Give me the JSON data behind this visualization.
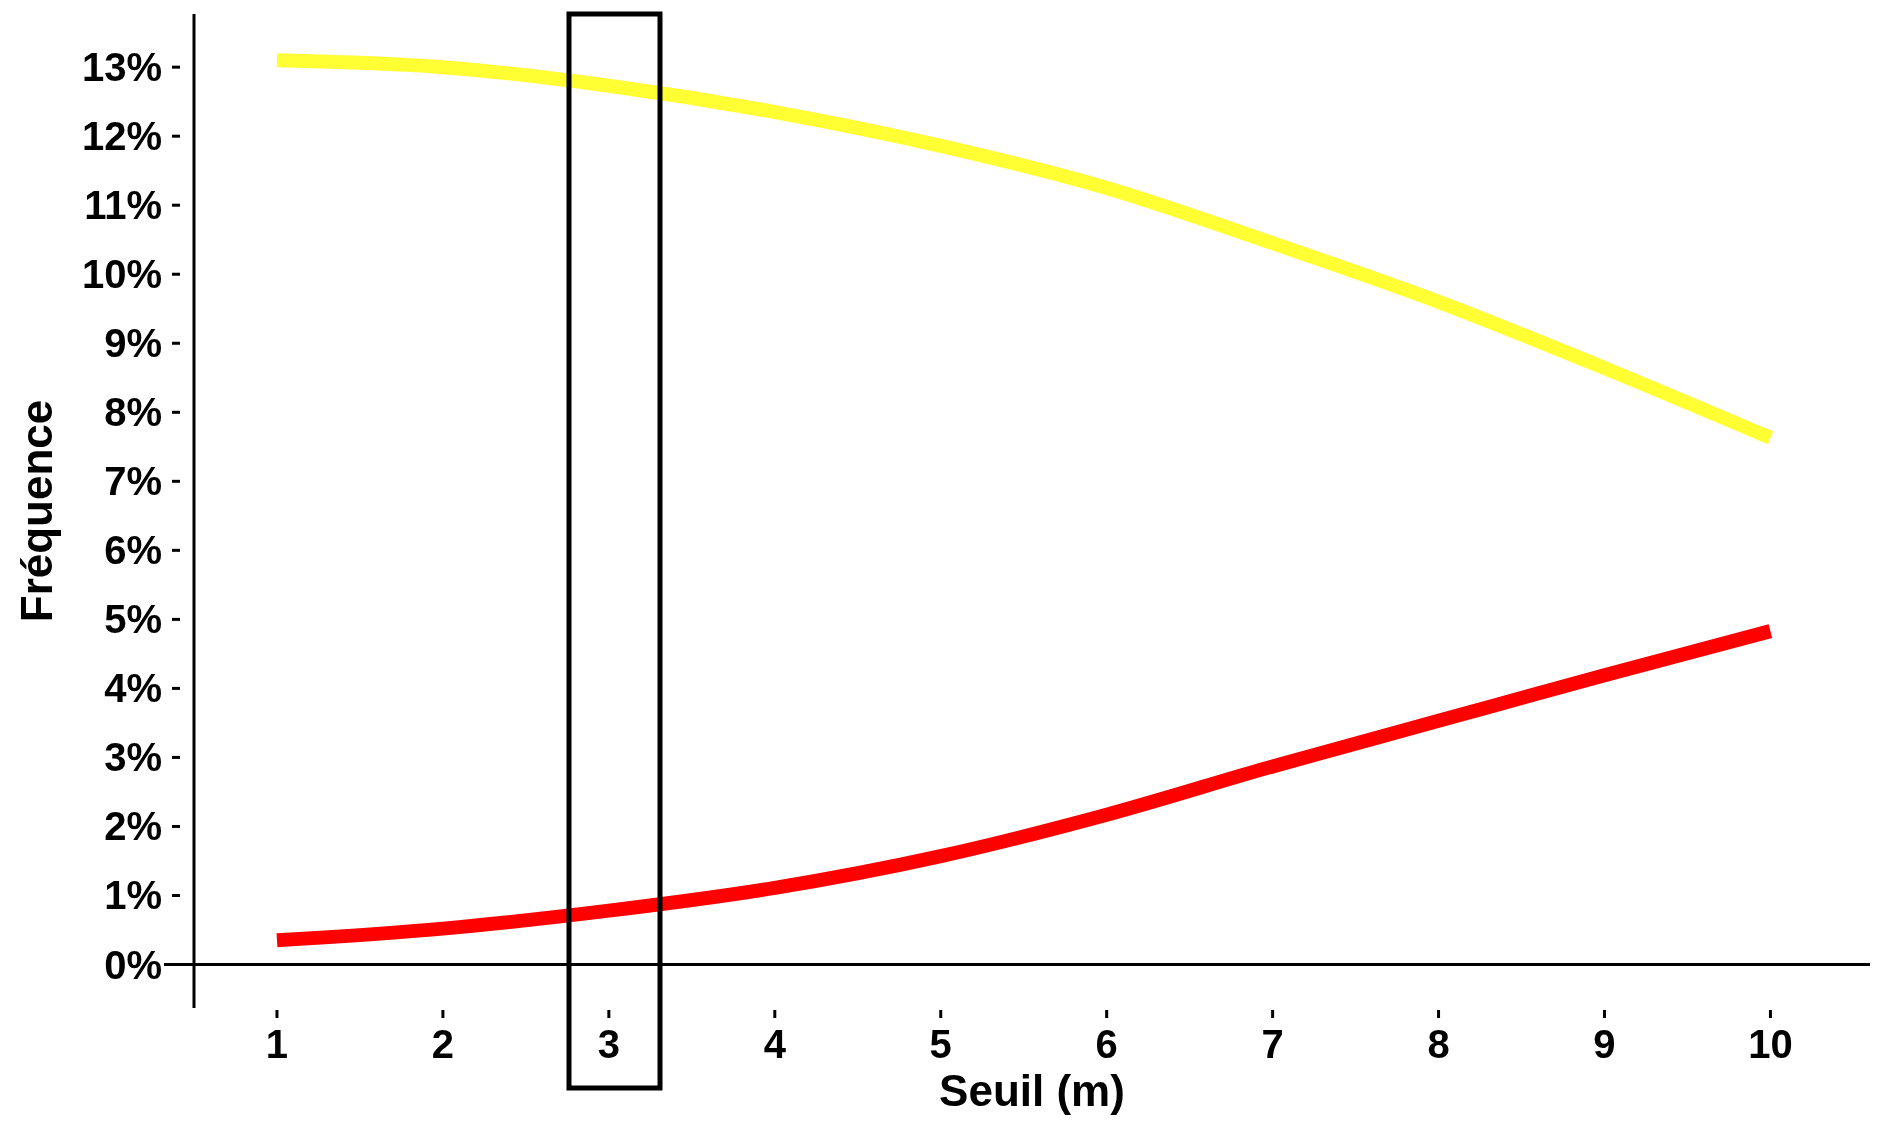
{
  "chart_data": {
    "type": "line",
    "xlabel": "Seuil (m)",
    "ylabel": "Fréquence",
    "x": [
      1,
      2,
      3,
      4,
      5,
      6,
      7,
      8,
      9,
      10
    ],
    "series": [
      {
        "color": "#ffff33",
        "values": [
          13.1,
          13.0,
          12.73,
          12.35,
          11.86,
          11.25,
          10.45,
          9.6,
          8.64,
          7.63
        ]
      },
      {
        "color": "#ff0000",
        "values": [
          0.35,
          0.52,
          0.78,
          1.11,
          1.57,
          2.17,
          2.87,
          3.53,
          4.19,
          4.83
        ]
      }
    ],
    "xlim": [
      0.5,
      10.6
    ],
    "xticks": [
      1,
      2,
      3,
      4,
      5,
      6,
      7,
      8,
      9,
      10
    ],
    "ylim": [
      -0.63,
      13.77
    ],
    "yticks": [
      {
        "value": 0,
        "label": "0%"
      },
      {
        "value": 1,
        "label": "1%"
      },
      {
        "value": 2,
        "label": "2%"
      },
      {
        "value": 3,
        "label": "3%"
      },
      {
        "value": 4,
        "label": "4%"
      },
      {
        "value": 5,
        "label": "5%"
      },
      {
        "value": 6,
        "label": "6%"
      },
      {
        "value": 7,
        "label": "7%"
      },
      {
        "value": 8,
        "label": "8%"
      },
      {
        "value": 9,
        "label": "9%"
      },
      {
        "value": 10,
        "label": "10%"
      },
      {
        "value": 11,
        "label": "11%"
      },
      {
        "value": 12,
        "label": "12%"
      },
      {
        "value": 13,
        "label": "13%"
      }
    ],
    "marker": "none",
    "line_style": "solid"
  }
}
